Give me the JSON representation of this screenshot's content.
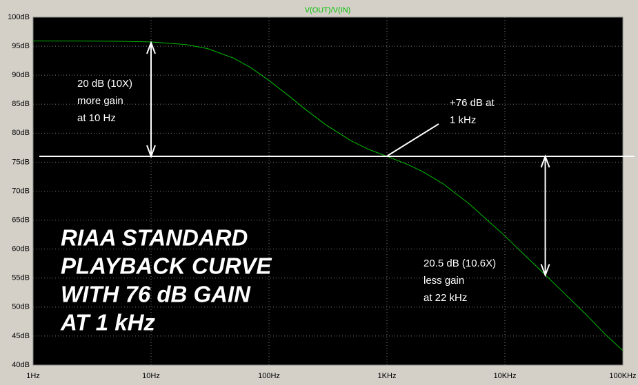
{
  "chart_data": {
    "type": "line",
    "title": "V(OUT)/V(IN)",
    "log_x": true,
    "grid": true,
    "xlim": [
      1,
      100000
    ],
    "ylim": [
      40,
      100
    ],
    "xticks": [
      {
        "value": 1,
        "label": "1Hz"
      },
      {
        "value": 10,
        "label": "10Hz"
      },
      {
        "value": 100,
        "label": "100Hz"
      },
      {
        "value": 1000,
        "label": "1KHz"
      },
      {
        "value": 10000,
        "label": "10KHz"
      },
      {
        "value": 100000,
        "label": "100KHz"
      }
    ],
    "yticks": [
      {
        "value": 40,
        "label": "40dB"
      },
      {
        "value": 45,
        "label": "45dB"
      },
      {
        "value": 50,
        "label": "50dB"
      },
      {
        "value": 55,
        "label": "55dB"
      },
      {
        "value": 60,
        "label": "60dB"
      },
      {
        "value": 65,
        "label": "65dB"
      },
      {
        "value": 70,
        "label": "70dB"
      },
      {
        "value": 75,
        "label": "75dB"
      },
      {
        "value": 80,
        "label": "80dB"
      },
      {
        "value": 85,
        "label": "85dB"
      },
      {
        "value": 90,
        "label": "90dB"
      },
      {
        "value": 95,
        "label": "95dB"
      },
      {
        "value": 100,
        "label": "100dB"
      }
    ],
    "x": [
      1,
      2,
      5,
      10,
      20,
      30,
      50,
      70,
      100,
      150,
      200,
      300,
      500,
      700,
      1000,
      1500,
      2000,
      3000,
      5000,
      7000,
      10000,
      15000,
      20000,
      30000,
      50000,
      70000,
      100000
    ],
    "series": [
      {
        "name": "V(OUT)/V(IN)",
        "color": "#00c000",
        "values": [
          95.9,
          95.9,
          95.86,
          95.74,
          95.27,
          94.59,
          92.95,
          91.3,
          89.09,
          86.3,
          84.22,
          81.5,
          78.65,
          77.2,
          76,
          74.6,
          73.39,
          71.25,
          67.79,
          65.1,
          62.27,
          58.8,
          56.38,
          52.9,
          48.5,
          45.4,
          42.5
        ]
      }
    ],
    "reference_line": 76,
    "arrows": [
      {
        "x": 10,
        "y1": 95.6,
        "y2": 76
      },
      {
        "x": 22000,
        "y1": 76,
        "y2": 55.5
      }
    ],
    "annotations": [
      {
        "lines": [
          "20 dB (10X)",
          "more gain",
          "at 10 Hz"
        ]
      },
      {
        "lines": [
          "+76 dB at",
          "1 kHz"
        ]
      },
      {
        "lines": [
          "20.5 dB (10.6X)",
          "less gain",
          "at 22 kHz"
        ]
      }
    ],
    "label_lines": [
      "RIAA  STANDARD",
      "PLAYBACK CURVE",
      "WITH 76 dB GAIN",
      "AT 1 kHz"
    ]
  }
}
